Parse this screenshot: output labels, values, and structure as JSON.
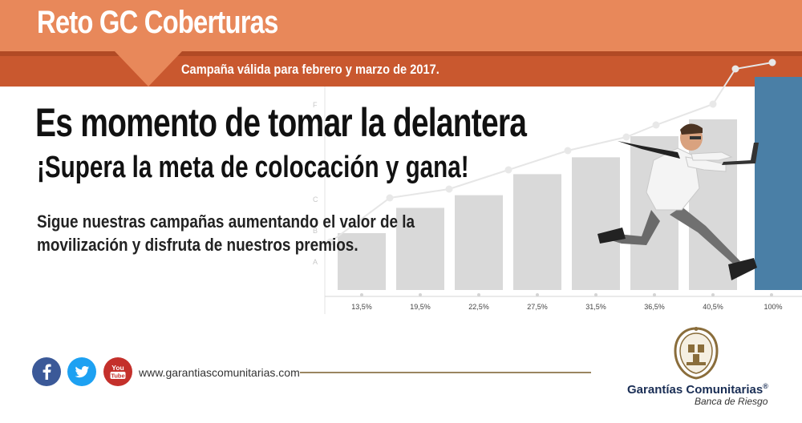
{
  "header": {
    "title": "Reto GC Coberturas",
    "subtitle": "Campaña válida para febrero y marzo de 2017."
  },
  "hero": {
    "headline": "Es momento de tomar la delantera",
    "subheadline": "¡Supera la meta de colocación y gana!",
    "body_line1": "Sigue nuestras campañas aumentando el valor de la",
    "body_line2": "movilización y disfruta de nuestros premios."
  },
  "chart_data": {
    "type": "bar",
    "categories": [
      "13,5%",
      "19,5%",
      "22,5%",
      "27,5%",
      "31,5%",
      "36,5%",
      "40,5%",
      "100%"
    ],
    "values": [
      13.5,
      19.5,
      22.5,
      27.5,
      31.5,
      36.5,
      40.5,
      100
    ],
    "ylim": [
      0,
      100
    ],
    "y_tick_labels": [
      "A",
      "B",
      "C",
      "F"
    ],
    "highlight_category": "100%",
    "colors": {
      "bar": "#d9d9d9",
      "highlight": "#4a7fa6",
      "trend": "#e6e6e6"
    }
  },
  "footer": {
    "social": [
      {
        "name": "facebook",
        "label": "f",
        "color": "#3b5998"
      },
      {
        "name": "twitter",
        "label": "t",
        "color": "#1da1f2"
      },
      {
        "name": "youtube",
        "label": "You Tube",
        "color": "#c4302b"
      }
    ],
    "website": "www.garantiascomunitarias.com",
    "brand_name": "Garantías Comunitarias",
    "brand_mark": "®",
    "brand_tagline": "Banca de Riesgo"
  },
  "colors": {
    "header_light": "#e8885a",
    "header_dark": "#c9582f",
    "brand_navy": "#1a2e55",
    "gold": "#9a8560"
  }
}
